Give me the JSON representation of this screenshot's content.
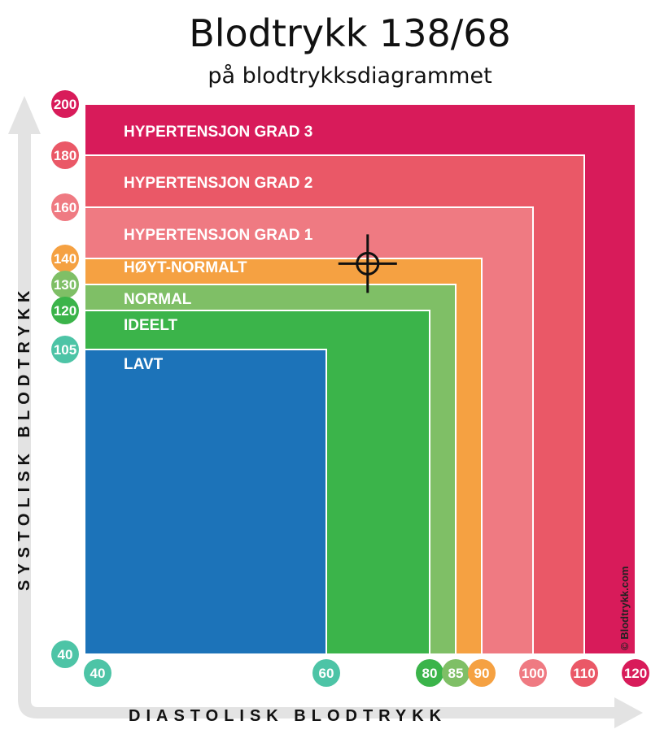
{
  "chart_data": {
    "type": "heatmap",
    "title": "Blodtrykk 138/68",
    "subtitle": "på blodtrykksdiagrammet",
    "xlabel": "DIASTOLISK BLODTRYKK",
    "ylabel": "SYSTOLISK BLODTRYKK",
    "xlim": [
      40,
      120
    ],
    "ylim": [
      40,
      200
    ],
    "bands": [
      {
        "label": "HYPERTENSJON GRAD 3",
        "x_max": 120,
        "y_max": 200,
        "color": "#d81b5a"
      },
      {
        "label": "HYPERTENSJON GRAD 2",
        "x_max": 110,
        "y_max": 180,
        "color": "#ea5867"
      },
      {
        "label": "HYPERTENSJON GRAD 1",
        "x_max": 100,
        "y_max": 160,
        "color": "#ef7a82"
      },
      {
        "label": "HØYT-NORMALT",
        "x_max": 90,
        "y_max": 140,
        "color": "#f5a142"
      },
      {
        "label": "NORMAL",
        "x_max": 85,
        "y_max": 130,
        "color": "#7fbf66"
      },
      {
        "label": "IDEELT",
        "x_max": 80,
        "y_max": 120,
        "color": "#3bb44a"
      },
      {
        "label": "LAVT",
        "x_max": 60,
        "y_max": 105,
        "color": "#1c73b9"
      }
    ],
    "y_ticks": [
      {
        "value": 200,
        "label": "200",
        "color": "#d81b5a"
      },
      {
        "value": 180,
        "label": "180",
        "color": "#ea5867"
      },
      {
        "value": 160,
        "label": "160",
        "color": "#ef7a82"
      },
      {
        "value": 140,
        "label": "140",
        "color": "#f5a142"
      },
      {
        "value": 130,
        "label": "130",
        "color": "#7fbf66"
      },
      {
        "value": 120,
        "label": "120",
        "color": "#3bb44a"
      },
      {
        "value": 105,
        "label": "105",
        "color": "#4dc4a6"
      },
      {
        "value": 40,
        "label": "40",
        "color": "#4dc4a6"
      }
    ],
    "x_ticks": [
      {
        "value": 40,
        "label": "40",
        "color": "#4dc4a6"
      },
      {
        "value": 60,
        "label": "60",
        "color": "#4dc4a6"
      },
      {
        "value": 80,
        "label": "80",
        "color": "#3bb44a"
      },
      {
        "value": 85,
        "label": "85",
        "color": "#7fbf66"
      },
      {
        "value": 90,
        "label": "90",
        "color": "#f5a142"
      },
      {
        "value": 100,
        "label": "100",
        "color": "#ef7a82"
      },
      {
        "value": 110,
        "label": "110",
        "color": "#ea5867"
      },
      {
        "value": 120,
        "label": "120",
        "color": "#d81b5a"
      }
    ],
    "marker": {
      "systolic": 138,
      "diastolic": 68
    },
    "copyright": "© Blodtrykk.com"
  }
}
